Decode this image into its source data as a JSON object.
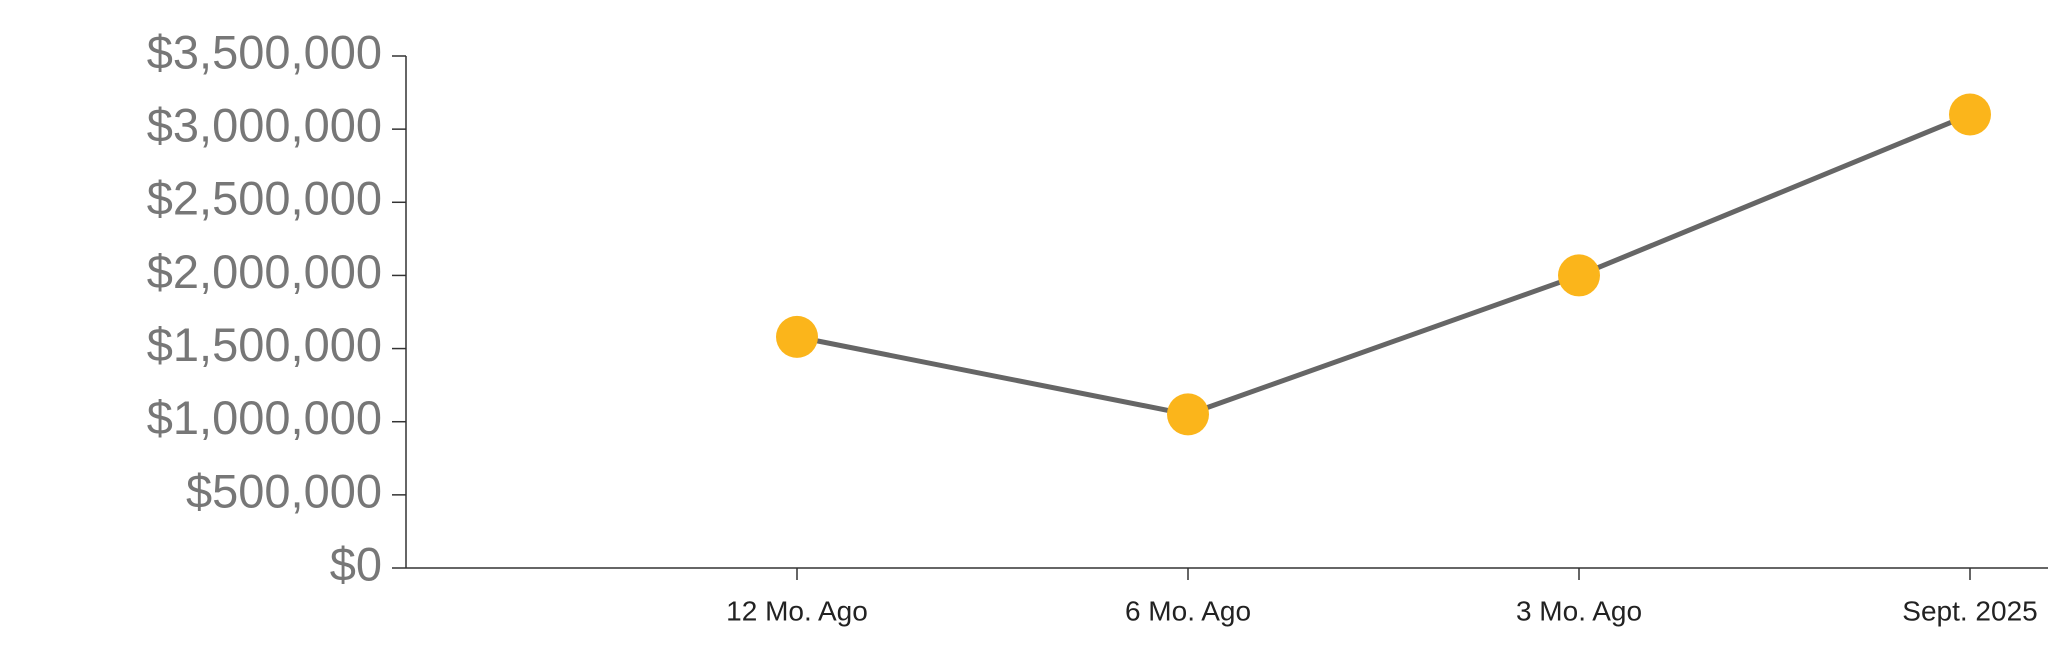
{
  "chart_data": {
    "type": "line",
    "categories": [
      "12 Mo. Ago",
      "6 Mo. Ago",
      "3 Mo. Ago",
      "Sept. 2025"
    ],
    "values": [
      1580000,
      1050000,
      2000000,
      3100000
    ],
    "color": "#666666",
    "marker_color": "#fbb51b",
    "ylim": [
      0,
      3500000
    ],
    "yticks": [
      {
        "value": 0,
        "label": "$0"
      },
      {
        "value": 500000,
        "label": "$500,000"
      },
      {
        "value": 1000000,
        "label": "$1,000,000"
      },
      {
        "value": 1500000,
        "label": "$1,500,000"
      },
      {
        "value": 2000000,
        "label": "$2,000,000"
      },
      {
        "value": 2500000,
        "label": "$2,500,000"
      },
      {
        "value": 3000000,
        "label": "$3,000,000"
      },
      {
        "value": 3500000,
        "label": "$3,500,000"
      }
    ],
    "grid": false
  }
}
